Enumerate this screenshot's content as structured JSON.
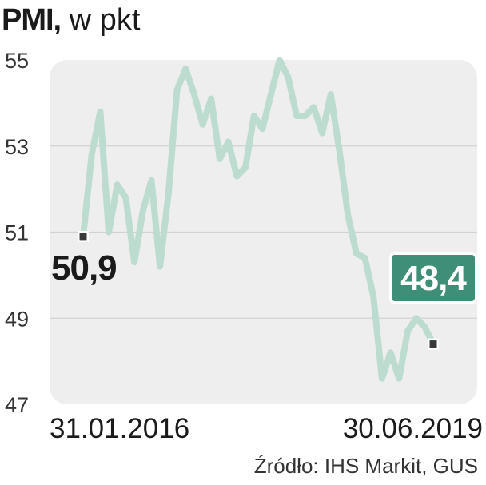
{
  "title": {
    "bold": "PMI,",
    "rest": " w pkt"
  },
  "source": "Źródło: IHS Markit, GUS",
  "colors": {
    "line": "#bcdcd0",
    "accent": "#3f8f78",
    "plot_bg": "#eeeeee",
    "text": "#1a1a1a"
  },
  "chart_data": {
    "type": "line",
    "title": "PMI, w pkt",
    "x_start_label": "31.01.2016",
    "x_end_label": "30.06.2019",
    "ylim": [
      47,
      55
    ],
    "yticks": [
      "55",
      "53",
      "51",
      "49",
      "47"
    ],
    "grid": true,
    "start_label": "50,9",
    "end_label": "48,4",
    "x": [
      "2016-01",
      "2016-02",
      "2016-03",
      "2016-04",
      "2016-05",
      "2016-06",
      "2016-07",
      "2016-08",
      "2016-09",
      "2016-10",
      "2016-11",
      "2016-12",
      "2017-01",
      "2017-02",
      "2017-03",
      "2017-04",
      "2017-05",
      "2017-06",
      "2017-07",
      "2017-08",
      "2017-09",
      "2017-10",
      "2017-11",
      "2017-12",
      "2018-01",
      "2018-02",
      "2018-03",
      "2018-04",
      "2018-05",
      "2018-06",
      "2018-07",
      "2018-08",
      "2018-09",
      "2018-10",
      "2018-11",
      "2018-12",
      "2019-01",
      "2019-02",
      "2019-03",
      "2019-04",
      "2019-05",
      "2019-06"
    ],
    "values": [
      50.9,
      52.8,
      53.8,
      51.0,
      52.1,
      51.8,
      50.3,
      51.5,
      52.2,
      50.2,
      51.9,
      54.3,
      54.8,
      54.2,
      53.5,
      54.1,
      52.7,
      53.1,
      52.3,
      52.5,
      53.7,
      53.4,
      54.2,
      55.0,
      54.6,
      53.7,
      53.7,
      53.9,
      53.3,
      54.2,
      52.9,
      51.4,
      50.5,
      50.4,
      49.5,
      47.6,
      48.2,
      47.6,
      48.7,
      49.0,
      48.8,
      48.4
    ]
  }
}
